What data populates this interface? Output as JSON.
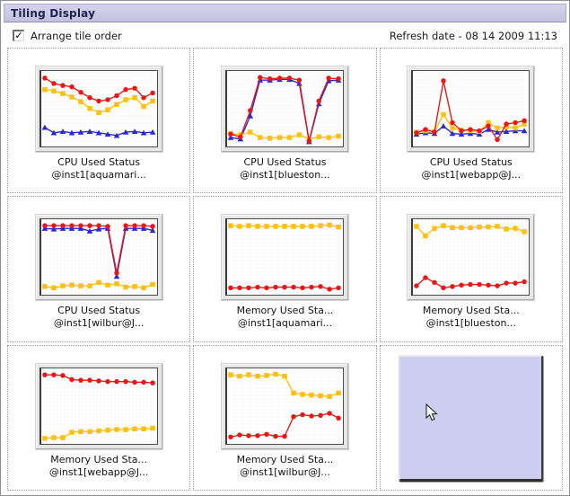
{
  "window": {
    "title": "Tiling Display"
  },
  "toolbar": {
    "checkbox_label": "Arrange tile order",
    "checkbox_checked": true,
    "refresh_label": "Refresh date - 08 14 2009 11:13"
  },
  "icons": {
    "check": "✓"
  },
  "colors": {
    "red": "#e81717",
    "yellow": "#fcc014",
    "blue": "#2929cc",
    "titlebar_bg": "#c9c6e4",
    "empty_tile_bg": "#cdcdef"
  },
  "chart_data": [
    {
      "type": "line",
      "title": "CPU Used Status",
      "subtitle": "@inst1[aquamari...",
      "ylim": [
        0,
        100
      ],
      "grid": false,
      "legend": "none",
      "series": [
        {
          "name": "blue",
          "color_key": "blue",
          "marker": "triangle",
          "values": [
            23,
            15,
            17,
            15,
            16,
            17,
            15,
            13,
            11,
            16,
            17,
            15,
            16
          ]
        },
        {
          "name": "yellow",
          "color_key": "yellow",
          "marker": "square",
          "values": [
            79,
            77,
            73,
            68,
            61,
            51,
            45,
            49,
            57,
            64,
            67,
            54,
            62
          ]
        },
        {
          "name": "red",
          "color_key": "red",
          "marker": "circle",
          "values": [
            96,
            88,
            85,
            83,
            75,
            67,
            62,
            64,
            70,
            79,
            81,
            67,
            74
          ]
        }
      ]
    },
    {
      "type": "line",
      "title": "CPU Used Status",
      "subtitle": "@inst1[blueston...",
      "ylim": [
        0,
        100
      ],
      "grid": false,
      "legend": "none",
      "series": [
        {
          "name": "blue",
          "color_key": "blue",
          "marker": "triangle",
          "values": [
            8,
            6,
            40,
            93,
            93,
            94,
            94,
            88,
            2,
            58,
            92,
            93
          ]
        },
        {
          "name": "yellow",
          "color_key": "yellow",
          "marker": "square",
          "values": [
            14,
            12,
            16,
            8,
            7,
            8,
            8,
            12,
            6,
            9,
            8,
            10
          ]
        },
        {
          "name": "red",
          "color_key": "red",
          "marker": "circle",
          "values": [
            13,
            9,
            48,
            97,
            95,
            96,
            96,
            93,
            3,
            62,
            96,
            95
          ]
        }
      ]
    },
    {
      "type": "line",
      "title": "CPU Used Status",
      "subtitle": "@inst1[webapp@J...",
      "ylim": [
        0,
        100
      ],
      "grid": false,
      "legend": "none",
      "series": [
        {
          "name": "blue",
          "color_key": "blue",
          "marker": "triangle",
          "values": [
            13,
            15,
            14,
            25,
            14,
            13,
            14,
            13,
            20,
            16,
            17,
            18,
            18
          ]
        },
        {
          "name": "yellow",
          "color_key": "yellow",
          "marker": "square",
          "values": [
            16,
            18,
            17,
            42,
            22,
            19,
            18,
            17,
            30,
            22,
            24,
            22,
            28
          ]
        },
        {
          "name": "red",
          "color_key": "red",
          "marker": "circle",
          "values": [
            15,
            20,
            16,
            92,
            30,
            18,
            20,
            18,
            25,
            5,
            28,
            30,
            33
          ]
        }
      ]
    },
    {
      "type": "line",
      "title": "CPU Used Status",
      "subtitle": "@inst1[wilbur@J...",
      "ylim": [
        0,
        100
      ],
      "grid": false,
      "legend": "none",
      "series": [
        {
          "name": "blue",
          "color_key": "blue",
          "marker": "triangle",
          "values": [
            93,
            92,
            93,
            93,
            93,
            89,
            92,
            93,
            22,
            93,
            93,
            93,
            90
          ]
        },
        {
          "name": "yellow",
          "color_key": "yellow",
          "marker": "square",
          "values": [
            7,
            5,
            8,
            9,
            8,
            8,
            13,
            9,
            11,
            6,
            7,
            5,
            10
          ]
        },
        {
          "name": "red",
          "color_key": "red",
          "marker": "circle",
          "values": [
            97,
            97,
            97,
            97,
            97,
            97,
            97,
            96,
            27,
            97,
            97,
            97,
            96
          ]
        }
      ]
    },
    {
      "type": "line",
      "title": "Memory Used Sta...",
      "subtitle": "@inst1[aquamari...",
      "ylim": [
        0,
        100
      ],
      "grid": false,
      "legend": "none",
      "series": [
        {
          "name": "yellow",
          "color_key": "yellow",
          "marker": "square",
          "values": [
            97,
            96,
            97,
            96,
            96,
            96,
            96,
            96,
            96,
            96,
            97,
            98,
            95
          ]
        },
        {
          "name": "red",
          "color_key": "red",
          "marker": "circle",
          "values": [
            5,
            5,
            5,
            6,
            5,
            6,
            6,
            6,
            5,
            6,
            7,
            3,
            5
          ]
        }
      ]
    },
    {
      "type": "line",
      "title": "Memory Used Sta...",
      "subtitle": "@inst1[blueston...",
      "ylim": [
        0,
        100
      ],
      "grid": false,
      "legend": "none",
      "series": [
        {
          "name": "yellow",
          "color_key": "yellow",
          "marker": "square",
          "values": [
            96,
            82,
            93,
            97,
            94,
            94,
            94,
            95,
            95,
            96,
            92,
            93,
            88
          ]
        },
        {
          "name": "red",
          "color_key": "red",
          "marker": "circle",
          "values": [
            8,
            20,
            13,
            5,
            7,
            9,
            10,
            10,
            9,
            8,
            12,
            12,
            14
          ]
        }
      ]
    },
    {
      "type": "line",
      "title": "Memory Used Sta...",
      "subtitle": "@inst1[webapp@J...",
      "ylim": [
        0,
        100
      ],
      "grid": false,
      "legend": "none",
      "series": [
        {
          "name": "yellow",
          "color_key": "yellow",
          "marker": "square",
          "values": [
            3,
            4,
            4,
            12,
            13,
            13,
            14,
            15,
            16,
            16,
            17,
            17,
            18
          ]
        },
        {
          "name": "red",
          "color_key": "red",
          "marker": "circle",
          "values": [
            97,
            97,
            96,
            90,
            89,
            89,
            88,
            87,
            87,
            87,
            86,
            86,
            85
          ]
        }
      ]
    },
    {
      "type": "line",
      "title": "Memory Used Sta...",
      "subtitle": "@inst1[wilbur@J...",
      "ylim": [
        0,
        100
      ],
      "grid": false,
      "legend": "none",
      "series": [
        {
          "name": "yellow",
          "color_key": "yellow",
          "marker": "square",
          "values": [
            97,
            95,
            97,
            95,
            96,
            98,
            95,
            70,
            68,
            67,
            66,
            65,
            70
          ]
        },
        {
          "name": "red",
          "color_key": "red",
          "marker": "circle",
          "values": [
            5,
            8,
            7,
            7,
            9,
            6,
            6,
            35,
            38,
            36,
            37,
            40,
            33
          ]
        }
      ]
    }
  ]
}
